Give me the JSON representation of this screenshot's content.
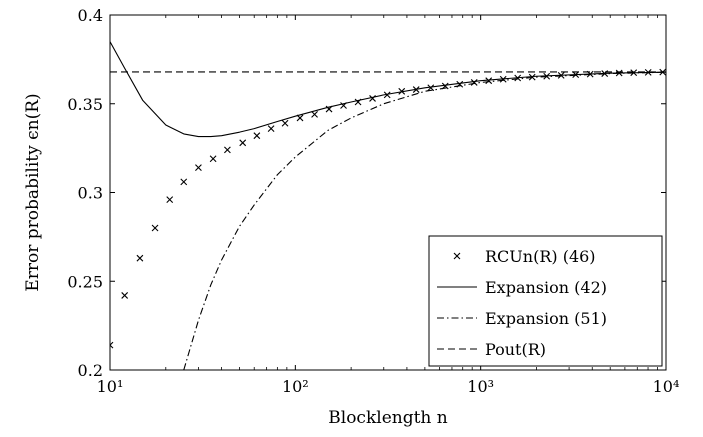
{
  "chart_data": {
    "type": "line",
    "title": "",
    "xlabel": "Blocklength n",
    "ylabel": "Error probability ϵn(R)",
    "xscale": "log",
    "xlim": [
      10,
      10000
    ],
    "ylim": [
      0.2,
      0.4
    ],
    "grid": false,
    "legend_position": "bottom-right",
    "x_ticks": [
      10,
      100,
      1000,
      10000
    ],
    "x_tick_labels": [
      "10¹",
      "10²",
      "10³",
      "10⁴"
    ],
    "y_ticks": [
      0.2,
      0.25,
      0.3,
      0.35,
      0.4
    ],
    "y_tick_labels": [
      "0.2",
      "0.25",
      "0.3",
      "0.35",
      "0.4"
    ],
    "series": [
      {
        "name": "RCUn(R) (46)",
        "style": "markers-x",
        "x": [
          10,
          12,
          14.5,
          17.5,
          21,
          25,
          30,
          36,
          43,
          52,
          62,
          74,
          88,
          106,
          127,
          152,
          182,
          218,
          261,
          313,
          375,
          449,
          538,
          644,
          771,
          923,
          1105,
          1323,
          1584,
          1897,
          2271,
          2719,
          3256,
          3899,
          4669,
          5590,
          6694,
          8016,
          9600
        ],
        "y": [
          0.214,
          0.242,
          0.263,
          0.28,
          0.296,
          0.306,
          0.314,
          0.319,
          0.324,
          0.328,
          0.332,
          0.336,
          0.339,
          0.342,
          0.344,
          0.347,
          0.349,
          0.351,
          0.353,
          0.355,
          0.357,
          0.358,
          0.359,
          0.36,
          0.361,
          0.362,
          0.363,
          0.3638,
          0.3645,
          0.365,
          0.3655,
          0.366,
          0.3664,
          0.3667,
          0.367,
          0.3673,
          0.3675,
          0.3677,
          0.3678
        ]
      },
      {
        "name": "Expansion (42)",
        "style": "solid",
        "x": [
          10,
          12,
          15,
          20,
          25,
          30,
          35,
          40,
          50,
          60,
          80,
          100,
          150,
          200,
          300,
          500,
          1000,
          2000,
          5000,
          10000
        ],
        "y": [
          0.385,
          0.37,
          0.352,
          0.338,
          0.333,
          0.3315,
          0.3315,
          0.332,
          0.334,
          0.336,
          0.34,
          0.343,
          0.348,
          0.351,
          0.355,
          0.359,
          0.363,
          0.3655,
          0.3672,
          0.3678
        ]
      },
      {
        "name": "Expansion (51)",
        "style": "dashdot",
        "x": [
          25,
          30,
          35,
          40,
          50,
          60,
          80,
          100,
          150,
          200,
          300,
          500,
          1000,
          2000,
          5000,
          10000
        ],
        "y": [
          0.2,
          0.228,
          0.248,
          0.262,
          0.281,
          0.293,
          0.31,
          0.32,
          0.335,
          0.342,
          0.35,
          0.357,
          0.362,
          0.365,
          0.367,
          0.3678
        ]
      },
      {
        "name": "Pout(R)",
        "style": "dashed",
        "x": [
          10,
          10000
        ],
        "y": [
          0.3679,
          0.3679
        ]
      }
    ]
  }
}
